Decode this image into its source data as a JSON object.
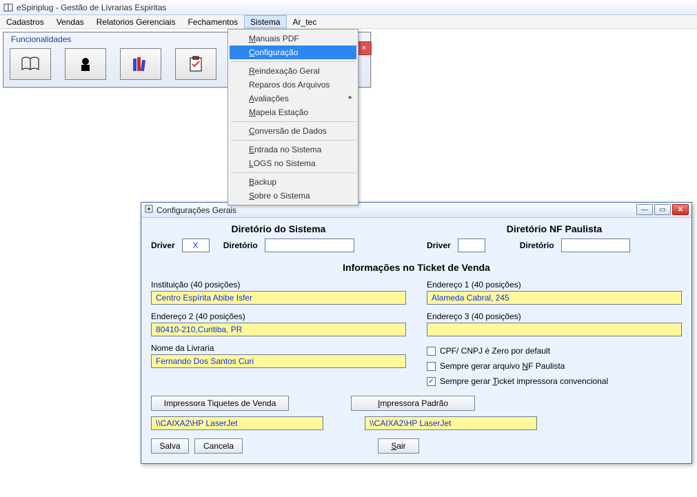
{
  "main_window": {
    "title": "eSpiriplug - Gestão de Livrarias Espiritas"
  },
  "menubar": [
    "Cadastros",
    "Vendas",
    "Relatorios Gerenciais",
    "Fechamentos",
    "Sistema",
    "Ar_tec"
  ],
  "active_menu_index": 4,
  "dropdown": {
    "groups": [
      [
        {
          "label": "Manuais PDF",
          "underline": 0
        },
        {
          "label": "Configuração",
          "underline": 0,
          "highlight": true
        }
      ],
      [
        {
          "label": "Reindexação Geral",
          "underline": 0
        },
        {
          "label": "Reparos dos Arquivos",
          "underline": null
        },
        {
          "label": "Avaliações",
          "underline": 0,
          "submenu": true
        },
        {
          "label": "Mapeia Estação",
          "underline": 0
        }
      ],
      [
        {
          "label": "Conversão de Dados",
          "underline": 0
        }
      ],
      [
        {
          "label": "Entrada no Sistema",
          "underline": 0
        },
        {
          "label": "LOGS no Sistema",
          "underline": 0
        }
      ],
      [
        {
          "label": "Backup",
          "underline": 0
        },
        {
          "label": "Sobre o Sistema",
          "underline": 0
        }
      ]
    ]
  },
  "toolbar": {
    "legend": "Funcionalidades",
    "close_glyph": "×",
    "icons": [
      "book-icon",
      "person-icon",
      "books-stack-icon",
      "clipboard-icon",
      "arrow-icon"
    ]
  },
  "dialog": {
    "title": "Configurações Gerais",
    "section_sistema": "Diretório do Sistema",
    "section_nf": "Diretório NF Paulista",
    "driver_label": "Driver",
    "diretorio_label": "Diretório",
    "driver_value": "X",
    "driver2_value": "",
    "diretorio1_value": "",
    "diretorio2_value": "",
    "ticket_heading": "Informações no Ticket de Venda",
    "instituicao_label": "Instituição (40 posições)",
    "instituicao_value": "Centro Espírita Abibe Isfer",
    "end1_label": "Endereço 1 (40 posições)",
    "end1_value": "Alameda Cabral, 245",
    "end2_label": "Endereço 2 (40 posições)",
    "end2_value": "80410-210,Curitiba, PR",
    "end3_label": "Endereço 3 (40 posições)",
    "end3_value": "",
    "nome_livraria_label": "Nome da Livraria",
    "nome_livraria_value": "Fernando Dos Santos Curi",
    "chk1": {
      "label_pre": "CPF/ CNPJ é Zero por default",
      "checked": false
    },
    "chk2": {
      "label_pre": "Sempre gerar arquivo ",
      "u": "N",
      "label_post": "F Paulista",
      "checked": false
    },
    "chk3": {
      "label_pre": "Sempre gerar ",
      "u": "T",
      "label_post": "icket impressora convencional",
      "checked": true
    },
    "btn_imp_tiquetes": "Impressora Tiquetes de Venda",
    "btn_imp_padrao_pre": "",
    "btn_imp_padrao_u": "I",
    "btn_imp_padrao_post": "mpressora Padrão",
    "printer1": "\\\\CAIXA2\\HP LaserJet",
    "printer2": "\\\\CAIXA2\\HP LaserJet",
    "btn_salva": "Salva",
    "btn_cancela": "Cancela",
    "btn_sair_u": "S",
    "btn_sair_post": "air"
  },
  "colors": {
    "highlight": "#2d87f0",
    "yellow": "#fff89a",
    "link_blue": "#1030ee",
    "dlg_bg": "#eaf3fd"
  }
}
